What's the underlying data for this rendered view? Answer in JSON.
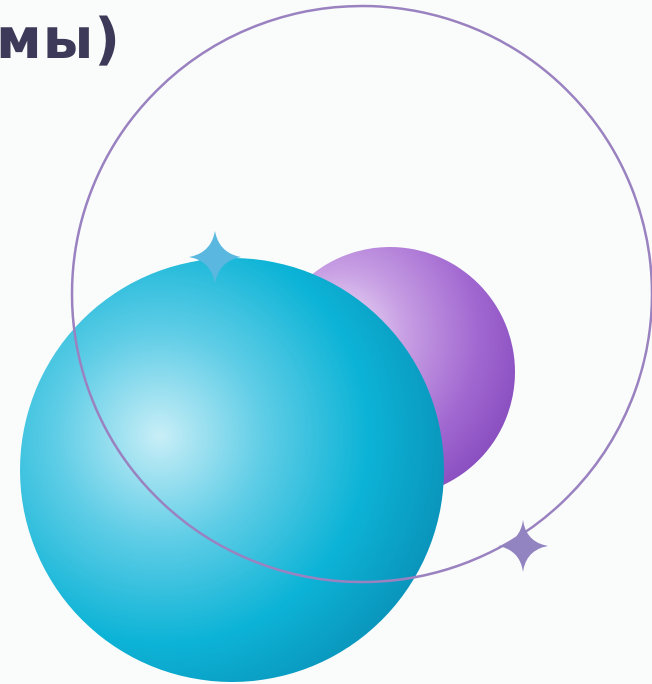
{
  "heading": {
    "text": "мы)"
  },
  "colors": {
    "background": "#fafcfb",
    "heading": "#3d3a59",
    "blue_sphere": "#00b4d8",
    "purple_sphere": "#a066d0",
    "orbit_ring": "#9a82c0",
    "blue_sparkle": "#5ab8e0",
    "purple_sparkle": "#9284c0"
  }
}
